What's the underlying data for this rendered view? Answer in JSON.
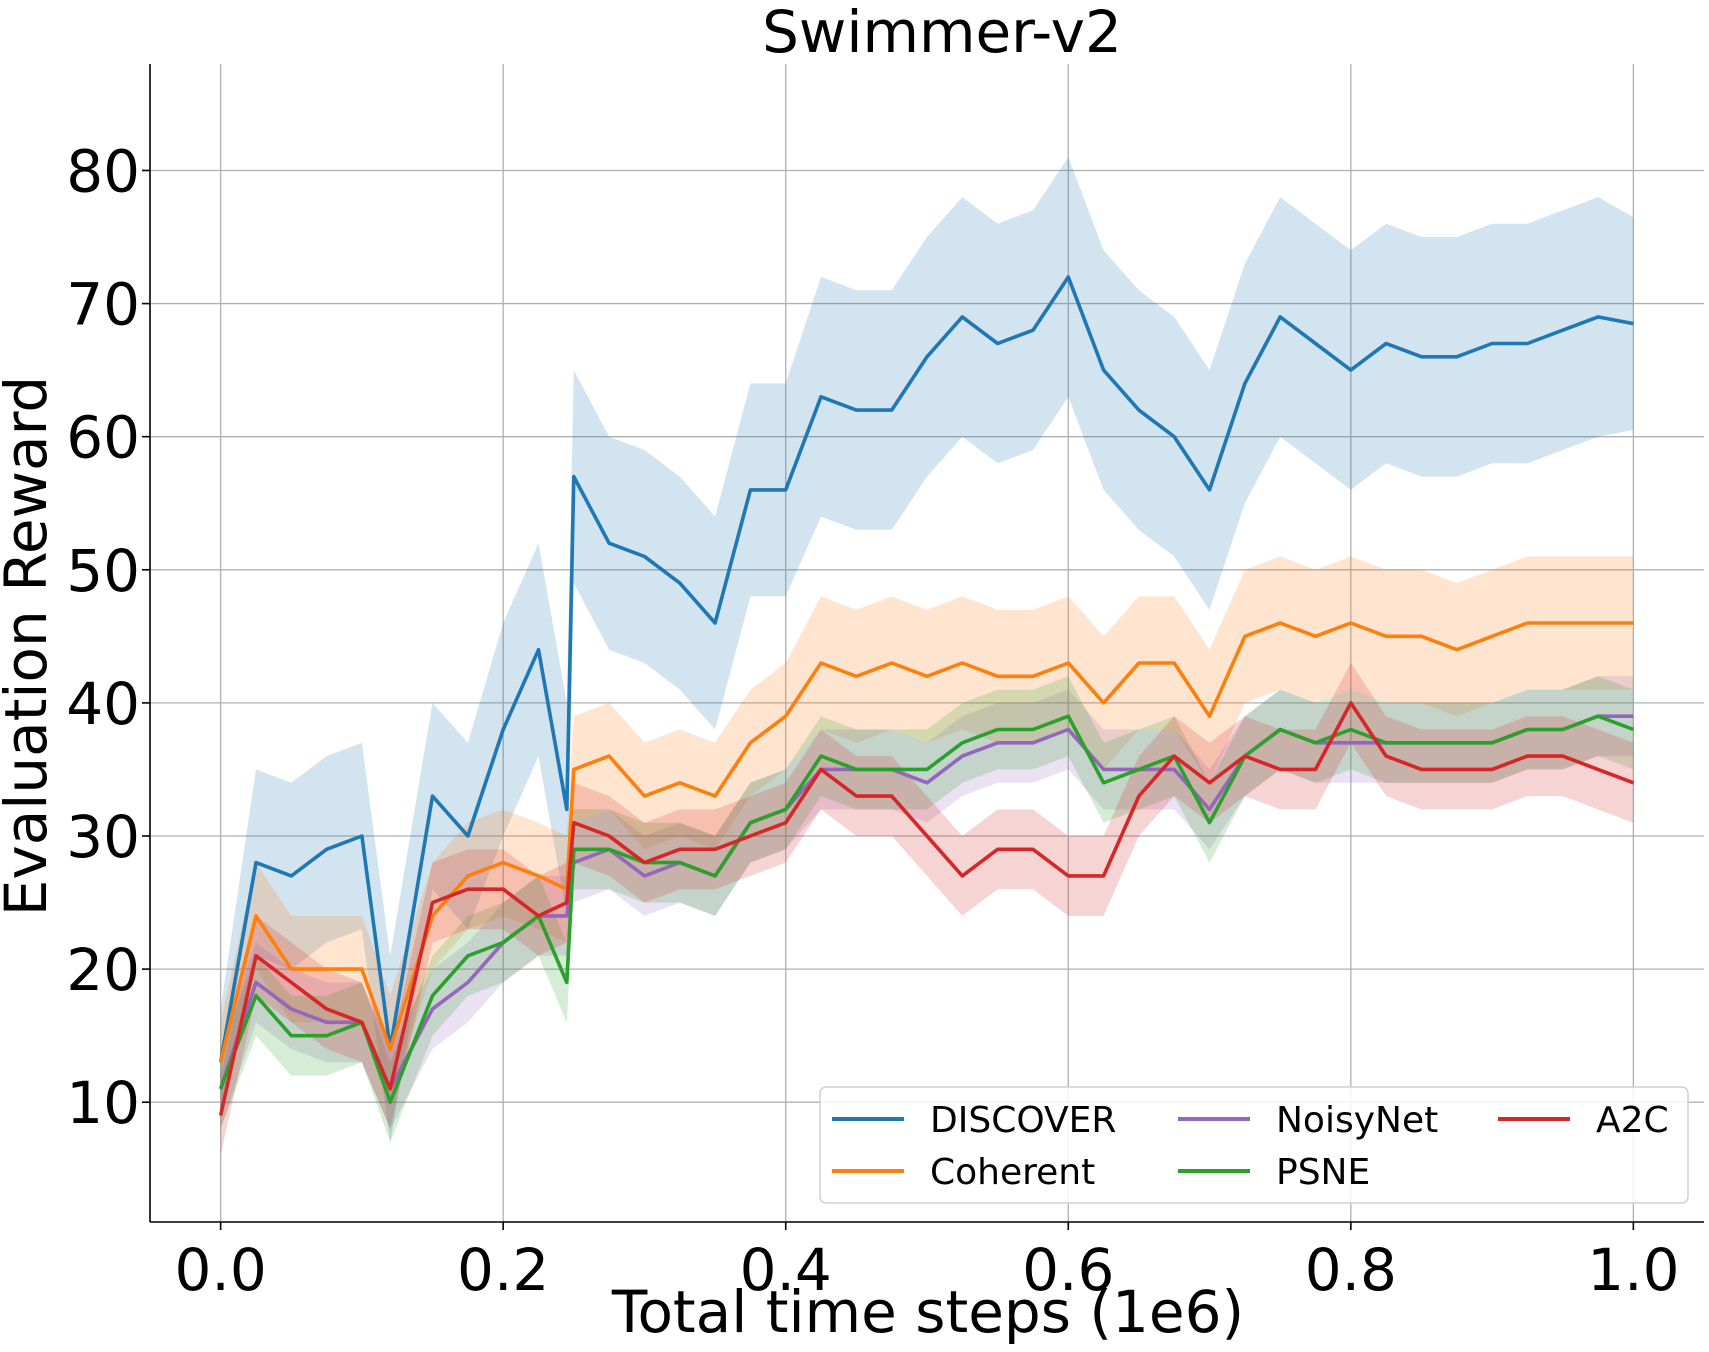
{
  "chart_data": {
    "type": "line",
    "title": "Swimmer-v2",
    "xlabel": "Total time steps (1e6)",
    "ylabel": "Evaluation Reward",
    "xlim": [
      -0.05,
      1.05
    ],
    "ylim": [
      1,
      88
    ],
    "xticks": [
      0.0,
      0.2,
      0.4,
      0.6,
      0.8,
      1.0
    ],
    "xtick_labels": [
      "0.0",
      "0.2",
      "0.4",
      "0.6",
      "0.8",
      "1.0"
    ],
    "yticks": [
      10,
      20,
      30,
      40,
      50,
      60,
      70,
      80
    ],
    "ytick_labels": [
      "10",
      "20",
      "30",
      "40",
      "50",
      "60",
      "70",
      "80"
    ],
    "grid": true,
    "legend_position": "lower-right",
    "legend_columns": 3,
    "x": [
      0.0,
      0.025,
      0.05,
      0.075,
      0.1,
      0.12,
      0.15,
      0.175,
      0.2,
      0.225,
      0.245,
      0.25,
      0.275,
      0.3,
      0.325,
      0.35,
      0.375,
      0.4,
      0.425,
      0.45,
      0.475,
      0.5,
      0.525,
      0.55,
      0.575,
      0.6,
      0.625,
      0.65,
      0.675,
      0.7,
      0.725,
      0.75,
      0.775,
      0.8,
      0.825,
      0.85,
      0.875,
      0.9,
      0.925,
      0.95,
      0.975,
      1.0
    ],
    "series": [
      {
        "name": "DISCOVER",
        "color": "#1f77b4",
        "values": [
          13,
          28,
          27,
          29,
          30,
          14,
          33,
          30,
          38,
          44,
          32,
          57,
          52,
          51,
          49,
          46,
          56,
          56,
          63,
          62,
          62,
          66,
          69,
          67,
          68,
          72,
          65,
          62,
          60,
          56,
          64,
          69,
          67,
          65,
          67,
          66,
          66,
          67,
          67,
          68,
          69,
          68.5
        ],
        "spread": [
          4,
          7,
          7,
          7,
          7,
          7,
          7,
          7,
          8,
          8,
          8,
          8,
          8,
          8,
          8,
          8,
          8,
          8,
          9,
          9,
          9,
          9,
          9,
          9,
          9,
          9,
          9,
          9,
          9,
          9,
          9,
          9,
          9,
          9,
          9,
          9,
          9,
          9,
          9,
          9,
          9,
          8
        ]
      },
      {
        "name": "Coherent",
        "color": "#ff7f0e",
        "values": [
          13,
          24,
          20,
          20,
          20,
          14,
          24,
          27,
          28,
          27,
          26,
          35,
          36,
          33,
          34,
          33,
          37,
          39,
          43,
          42,
          43,
          42,
          43,
          42,
          42,
          43,
          40,
          43,
          43,
          39,
          45,
          46,
          45,
          46,
          45,
          45,
          44,
          45,
          46,
          46,
          46,
          46
        ],
        "spread": [
          3,
          4,
          4,
          4,
          4,
          4,
          4,
          4,
          4,
          4,
          4,
          4,
          4,
          4,
          4,
          4,
          4,
          4,
          5,
          5,
          5,
          5,
          5,
          5,
          5,
          5,
          5,
          5,
          5,
          5,
          5,
          5,
          5,
          5,
          5,
          5,
          5,
          5,
          5,
          5,
          5,
          5
        ]
      },
      {
        "name": "NoisyNet",
        "color": "#9467bd",
        "values": [
          11,
          19,
          17,
          16,
          16,
          11,
          17,
          19,
          22,
          24,
          24,
          28,
          29,
          27,
          28,
          27,
          31,
          32,
          35,
          35,
          35,
          34,
          36,
          37,
          37,
          38,
          35,
          35,
          35,
          32,
          36,
          38,
          37,
          37,
          37,
          37,
          37,
          37,
          38,
          38,
          39,
          39
        ],
        "spread": [
          3,
          3,
          3,
          3,
          3,
          3,
          3,
          3,
          3,
          3,
          3,
          3,
          3,
          3,
          3,
          3,
          3,
          3,
          3,
          3,
          3,
          3,
          3,
          3,
          3,
          3,
          3,
          3,
          3,
          3,
          3,
          3,
          3,
          3,
          3,
          3,
          3,
          3,
          3,
          3,
          3,
          3
        ]
      },
      {
        "name": "PSNE",
        "color": "#2ca02c",
        "values": [
          11,
          18,
          15,
          15,
          16,
          10,
          18,
          21,
          22,
          24,
          19,
          29,
          29,
          28,
          28,
          27,
          31,
          32,
          36,
          35,
          35,
          35,
          37,
          38,
          38,
          39,
          34,
          35,
          36,
          31,
          36,
          38,
          37,
          38,
          37,
          37,
          37,
          37,
          38,
          38,
          39,
          38
        ],
        "spread": [
          3,
          3,
          3,
          3,
          3,
          3,
          3,
          3,
          3,
          3,
          3,
          3,
          3,
          3,
          3,
          3,
          3,
          3,
          3,
          3,
          3,
          3,
          3,
          3,
          3,
          3,
          3,
          3,
          3,
          3,
          3,
          3,
          3,
          3,
          3,
          3,
          3,
          3,
          3,
          3,
          3,
          3
        ]
      },
      {
        "name": "A2C",
        "color": "#d62728",
        "values": [
          9,
          21,
          19,
          17,
          16,
          11,
          25,
          26,
          26,
          24,
          25,
          31,
          30,
          28,
          29,
          29,
          30,
          31,
          35,
          33,
          33,
          30,
          27,
          29,
          29,
          27,
          27,
          33,
          36,
          34,
          36,
          35,
          35,
          40,
          36,
          35,
          35,
          35,
          36,
          36,
          35,
          34
        ],
        "spread": [
          3,
          3,
          3,
          3,
          3,
          3,
          3,
          3,
          3,
          3,
          3,
          3,
          3,
          3,
          3,
          3,
          3,
          3,
          3,
          3,
          3,
          3,
          3,
          3,
          3,
          3,
          3,
          3,
          3,
          3,
          3,
          3,
          3,
          3,
          3,
          3,
          3,
          3,
          3,
          3,
          3,
          3
        ]
      }
    ]
  }
}
